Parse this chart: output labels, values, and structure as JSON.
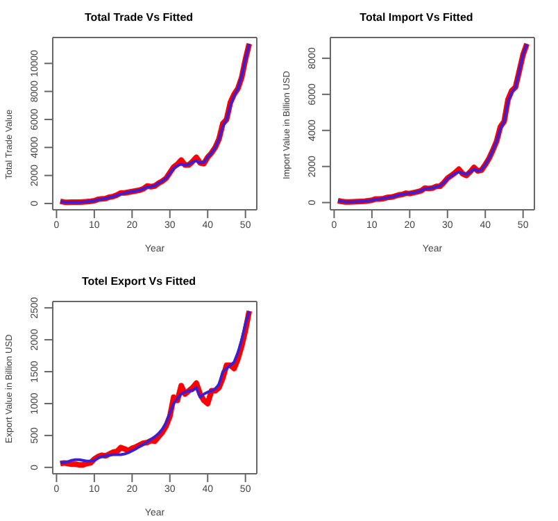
{
  "chart_data": [
    {
      "type": "line",
      "title": "Total Trade Vs Fitted",
      "xlabel": "Year",
      "ylabel": "Total Trade Value",
      "x": [
        1,
        2,
        3,
        4,
        5,
        6,
        7,
        8,
        9,
        10,
        11,
        12,
        13,
        14,
        15,
        16,
        17,
        18,
        19,
        20,
        21,
        22,
        23,
        24,
        25,
        26,
        27,
        28,
        29,
        30,
        31,
        32,
        33,
        34,
        35,
        36,
        37,
        38,
        39,
        40,
        41,
        42,
        43,
        44,
        45,
        46,
        47,
        48,
        49,
        50,
        51
      ],
      "xlim": [
        -1,
        53
      ],
      "xticks": [
        0,
        10,
        20,
        30,
        40,
        50
      ],
      "ylim": [
        -450,
        11850
      ],
      "yticks": [
        0,
        2000,
        4000,
        6000,
        8000,
        10000
      ],
      "grid": false,
      "legend": false,
      "marker": "none",
      "line_style": "solid",
      "series": [
        {
          "color": "#ff0000",
          "values": [
            150,
            100,
            80,
            90,
            100,
            90,
            110,
            130,
            160,
            200,
            300,
            330,
            350,
            450,
            500,
            600,
            750,
            750,
            800,
            850,
            900,
            950,
            1050,
            1250,
            1200,
            1250,
            1450,
            1600,
            1800,
            2200,
            2600,
            2800,
            3100,
            2750,
            2750,
            3000,
            3300,
            2900,
            2850,
            3300,
            3600,
            4000,
            4600,
            5700,
            6000,
            7200,
            7800,
            8200,
            9000,
            10300,
            11400
          ]
        },
        {
          "color": "#3b1fd0",
          "values": [
            150,
            110,
            90,
            90,
            100,
            100,
            110,
            130,
            160,
            200,
            270,
            320,
            360,
            430,
            500,
            580,
            680,
            740,
            800,
            850,
            900,
            960,
            1050,
            1180,
            1200,
            1280,
            1450,
            1600,
            1800,
            2150,
            2500,
            2700,
            2800,
            2750,
            2800,
            2950,
            3050,
            2900,
            2950,
            3300,
            3600,
            4000,
            4600,
            5500,
            6000,
            7000,
            7700,
            8200,
            9100,
            10300,
            11400
          ]
        }
      ]
    },
    {
      "type": "line",
      "title": "Total Import Vs Fitted",
      "xlabel": "Year",
      "ylabel": "Import Value in Billion USD",
      "x": [
        1,
        2,
        3,
        4,
        5,
        6,
        7,
        8,
        9,
        10,
        11,
        12,
        13,
        14,
        15,
        16,
        17,
        18,
        19,
        20,
        21,
        22,
        23,
        24,
        25,
        26,
        27,
        28,
        29,
        30,
        31,
        32,
        33,
        34,
        35,
        36,
        37,
        38,
        39,
        40,
        41,
        42,
        43,
        44,
        45,
        46,
        47,
        48,
        49,
        50,
        51
      ],
      "xlim": [
        -1,
        53
      ],
      "xticks": [
        0,
        10,
        20,
        30,
        40,
        50
      ],
      "ylim": [
        -400,
        9150
      ],
      "yticks": [
        0,
        2000,
        4000,
        6000,
        8000
      ],
      "grid": false,
      "legend": false,
      "marker": "none",
      "line_style": "solid",
      "series": [
        {
          "color": "#ff0000",
          "values": [
            100,
            60,
            30,
            30,
            40,
            50,
            60,
            70,
            100,
            130,
            200,
            200,
            220,
            280,
            300,
            350,
            420,
            450,
            520,
            500,
            550,
            600,
            650,
            800,
            780,
            800,
            900,
            900,
            1100,
            1350,
            1500,
            1650,
            1850,
            1600,
            1500,
            1700,
            1950,
            1750,
            1800,
            2100,
            2450,
            2900,
            3400,
            4200,
            4500,
            5700,
            6200,
            6400,
            7300,
            8200,
            8800
          ]
        },
        {
          "color": "#3b1fd0",
          "values": [
            100,
            60,
            40,
            35,
            40,
            50,
            60,
            70,
            100,
            130,
            180,
            200,
            230,
            270,
            300,
            350,
            410,
            460,
            500,
            510,
            550,
            600,
            660,
            760,
            780,
            810,
            880,
            920,
            1100,
            1330,
            1480,
            1600,
            1700,
            1620,
            1560,
            1700,
            1850,
            1750,
            1820,
            2100,
            2450,
            2900,
            3400,
            4100,
            4500,
            5600,
            6100,
            6400,
            7300,
            8200,
            8800
          ]
        }
      ]
    },
    {
      "type": "line",
      "title": "Totel Export Vs Fitted",
      "xlabel": "Year",
      "ylabel": "Export Value in Billion USD",
      "x": [
        1,
        2,
        3,
        4,
        5,
        6,
        7,
        8,
        9,
        10,
        11,
        12,
        13,
        14,
        15,
        16,
        17,
        18,
        19,
        20,
        21,
        22,
        23,
        24,
        25,
        26,
        27,
        28,
        29,
        30,
        31,
        32,
        33,
        34,
        35,
        36,
        37,
        38,
        39,
        40,
        41,
        42,
        43,
        44,
        45,
        46,
        47,
        48,
        49,
        50,
        51
      ],
      "xlim": [
        -1,
        53
      ],
      "xticks": [
        0,
        10,
        20,
        30,
        40,
        50
      ],
      "ylim": [
        -100,
        2600
      ],
      "yticks": [
        0,
        500,
        1000,
        1500,
        2000,
        2500
      ],
      "grid": false,
      "legend": false,
      "marker": "none",
      "line_style": "solid",
      "series": [
        {
          "color": "#ff0000",
          "values": [
            60,
            70,
            60,
            50,
            50,
            40,
            40,
            60,
            70,
            130,
            170,
            190,
            180,
            210,
            240,
            250,
            310,
            290,
            260,
            300,
            320,
            350,
            380,
            390,
            420,
            410,
            480,
            550,
            650,
            800,
            1100,
            1050,
            1280,
            1150,
            1200,
            1250,
            1320,
            1150,
            1050,
            1000,
            1200,
            1200,
            1250,
            1400,
            1600,
            1600,
            1550,
            1700,
            1900,
            2150,
            2450
          ]
        },
        {
          "color": "#3b1fd0",
          "values": [
            70,
            80,
            90,
            110,
            120,
            120,
            110,
            100,
            100,
            110,
            150,
            170,
            180,
            190,
            200,
            200,
            200,
            210,
            230,
            260,
            290,
            330,
            360,
            400,
            440,
            480,
            530,
            600,
            700,
            850,
            1000,
            1080,
            1150,
            1180,
            1200,
            1200,
            1250,
            1100,
            1150,
            1180,
            1200,
            1230,
            1300,
            1500,
            1550,
            1600,
            1650,
            1800,
            2000,
            2250,
            2450
          ]
        }
      ]
    }
  ]
}
